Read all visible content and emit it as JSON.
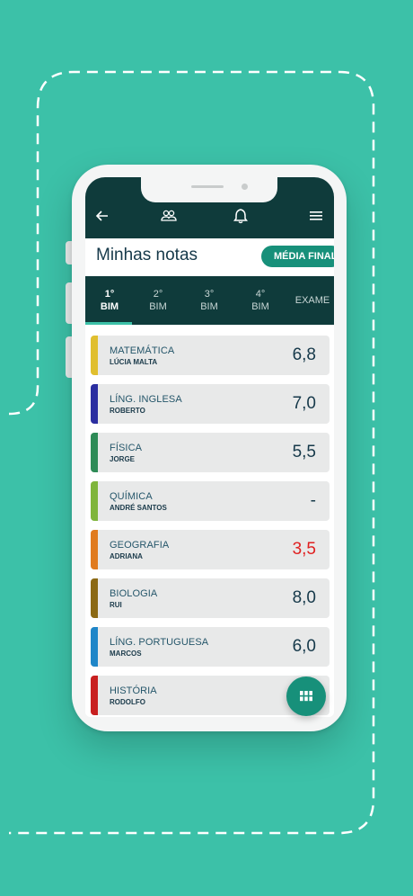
{
  "header": {
    "icons": [
      "back-arrow-icon",
      "people-icon",
      "bell-icon",
      "menu-icon"
    ]
  },
  "page": {
    "title": "Minhas notas",
    "final_button": "MÉDIA FINAL"
  },
  "tabs": [
    {
      "line1": "1°",
      "line2": "BIM",
      "active": true
    },
    {
      "line1": "2°",
      "line2": "BIM",
      "active": false
    },
    {
      "line1": "3°",
      "line2": "BIM",
      "active": false
    },
    {
      "line1": "4°",
      "line2": "BIM",
      "active": false
    },
    {
      "line1": "EXAME",
      "line2": "",
      "active": false
    }
  ],
  "grades": [
    {
      "subject": "MATEMÁTICA",
      "teacher": "LÚCIA MALTA",
      "grade": "6,8",
      "color": "#e0bf2f",
      "grade_color": "#16394a"
    },
    {
      "subject": "LÍNG. INGLESA",
      "teacher": "ROBERTO",
      "grade": "7,0",
      "color": "#2b2ea0",
      "grade_color": "#16394a"
    },
    {
      "subject": "FÍSICA",
      "teacher": "JORGE",
      "grade": "5,5",
      "color": "#2e8b57",
      "grade_color": "#16394a"
    },
    {
      "subject": "QUÍMICA",
      "teacher": "ANDRÉ SANTOS",
      "grade": "-",
      "color": "#7fb53c",
      "grade_color": "#16394a"
    },
    {
      "subject": "GEOGRAFIA",
      "teacher": "ADRIANA",
      "grade": "3,5",
      "color": "#e07b1f",
      "grade_color": "#e02020"
    },
    {
      "subject": "BIOLOGIA",
      "teacher": "RUI",
      "grade": "8,0",
      "color": "#8b6914",
      "grade_color": "#16394a"
    },
    {
      "subject": "LÍNG. PORTUGUESA",
      "teacher": "MARCOS",
      "grade": "6,0",
      "color": "#1f86c8",
      "grade_color": "#16394a"
    },
    {
      "subject": "HISTÓRIA",
      "teacher": "RODOLFO",
      "grade": "",
      "color": "#c82020",
      "grade_color": "#16394a"
    }
  ],
  "fab": {
    "icon": "grid-icon"
  },
  "colors": {
    "background": "#3cc1a8",
    "header": "#0f3b3b",
    "accent": "#17907a"
  }
}
